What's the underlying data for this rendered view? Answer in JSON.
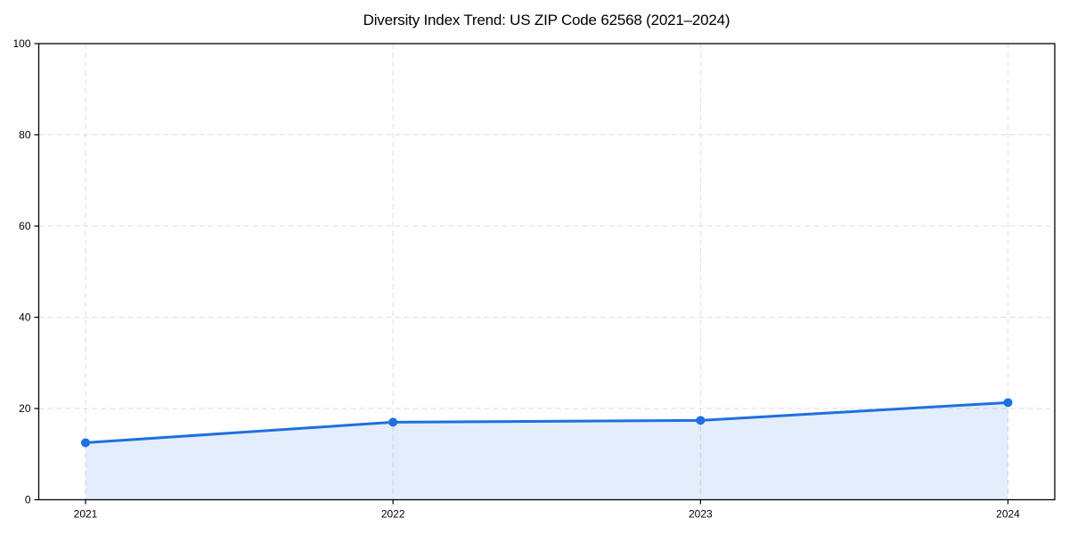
{
  "title": "Diversity Index Trend: US ZIP Code 62568 (2021–2024)",
  "chart_data": {
    "type": "area",
    "title": "Diversity Index Trend: US ZIP Code 62568 (2021–2024)",
    "categories": [
      "2021",
      "2022",
      "2023",
      "2024"
    ],
    "series": [
      {
        "name": "Diversity Index",
        "values": [
          12.5,
          17.0,
          17.4,
          21.3
        ]
      }
    ],
    "xlabel": "",
    "ylabel": "",
    "ylim": [
      0,
      100
    ],
    "yticks": [
      0,
      20,
      40,
      60,
      80,
      100
    ],
    "grid": "dashed",
    "legend": "none",
    "colors": {
      "line": "#1f6fe0",
      "marker": "#1f6fe0",
      "fill": "#1f6fe0",
      "fill_opacity": 0.12,
      "grid": "#dedede",
      "axis": "#000000",
      "tick_text": "#000000",
      "background": "#ffffff"
    }
  }
}
